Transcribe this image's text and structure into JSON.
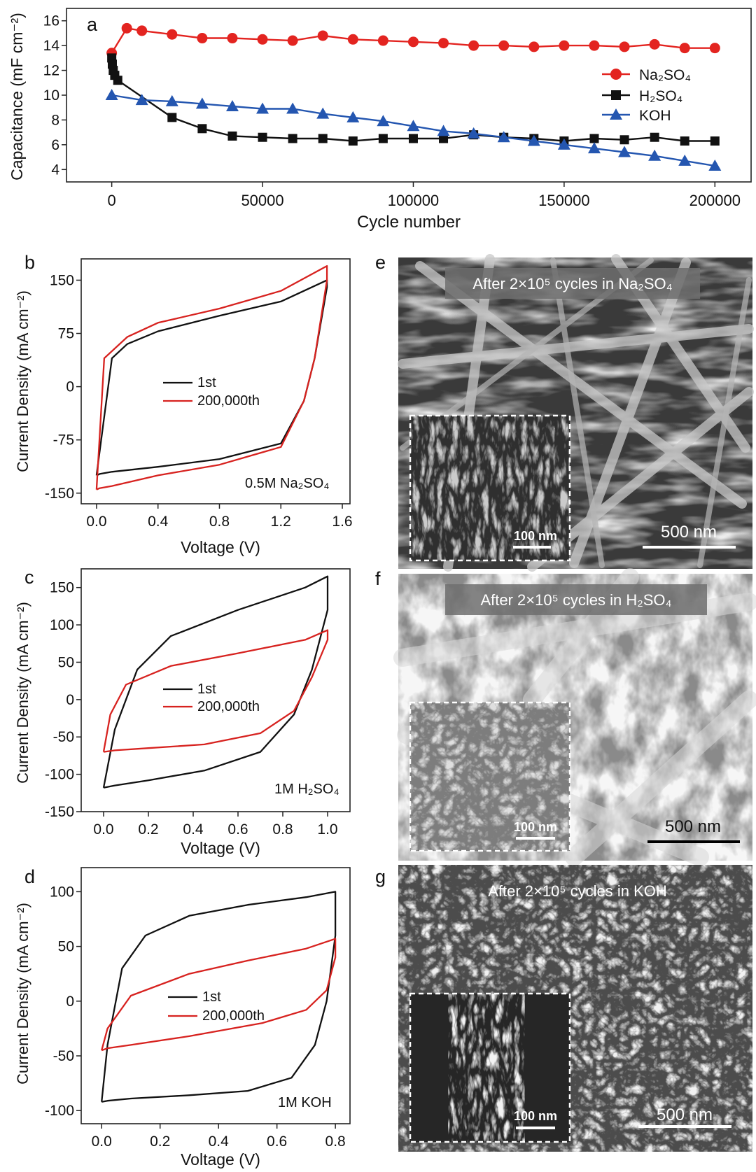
{
  "panels": {
    "a": {
      "letter": "a",
      "xlabel": "Cycle number",
      "ylabel": "Capacitance (mF cm⁻²)"
    },
    "b": {
      "letter": "b",
      "xlabel": "Voltage (V)",
      "ylabel": "Current Density (mA cm⁻²)",
      "annotation": "0.5M Na₂SO₄"
    },
    "c": {
      "letter": "c",
      "xlabel": "Voltage (V)",
      "ylabel": "Current Density (mA cm⁻²)",
      "annotation": "1M H₂SO₄"
    },
    "d": {
      "letter": "d",
      "xlabel": "Voltage (V)",
      "ylabel": "Current Density (mA cm⁻²)",
      "annotation": "1M KOH"
    },
    "e": {
      "letter": "e",
      "caption": "After 2×10⁵ cycles in Na₂SO₄",
      "scale_main": "500 nm",
      "scale_inset": "100 nm"
    },
    "f": {
      "letter": "f",
      "caption": "After 2×10⁵ cycles in H₂SO₄",
      "scale_main": "500 nm",
      "scale_inset": "100 nm"
    },
    "g": {
      "letter": "g",
      "caption": "After 2×10⁵ cycles in KOH",
      "scale_main": "500 nm",
      "scale_inset": "100 nm"
    }
  },
  "chart_data": [
    {
      "panel": "a",
      "type": "line",
      "xlabel": "Cycle number",
      "ylabel": "Capacitance (mF cm⁻²)",
      "xlim": [
        -15000,
        212000
      ],
      "ylim": [
        3,
        17
      ],
      "xticks": [
        0,
        50000,
        100000,
        150000,
        200000
      ],
      "yticks": [
        4,
        6,
        8,
        10,
        12,
        14,
        16
      ],
      "legend_position": "right",
      "series": [
        {
          "name": "Na₂SO₄",
          "color": "#e32420",
          "marker": "circle",
          "x": [
            0,
            5000,
            10000,
            20000,
            30000,
            40000,
            50000,
            60000,
            70000,
            80000,
            90000,
            100000,
            110000,
            120000,
            130000,
            140000,
            150000,
            160000,
            170000,
            180000,
            190000,
            200000
          ],
          "y": [
            13.4,
            15.4,
            15.2,
            14.9,
            14.6,
            14.6,
            14.5,
            14.4,
            14.8,
            14.5,
            14.4,
            14.3,
            14.2,
            14.0,
            14.0,
            13.9,
            14.0,
            14.0,
            13.9,
            14.1,
            13.8,
            13.8
          ]
        },
        {
          "name": "H₂SO₄",
          "color": "#111111",
          "marker": "square",
          "x": [
            0,
            200,
            500,
            1000,
            2000,
            20000,
            30000,
            40000,
            50000,
            60000,
            70000,
            80000,
            90000,
            100000,
            110000,
            120000,
            130000,
            140000,
            150000,
            160000,
            170000,
            180000,
            190000,
            200000
          ],
          "y": [
            13.0,
            12.5,
            12.0,
            11.6,
            11.2,
            8.2,
            7.3,
            6.7,
            6.6,
            6.5,
            6.5,
            6.3,
            6.5,
            6.5,
            6.5,
            6.8,
            6.6,
            6.5,
            6.3,
            6.5,
            6.4,
            6.6,
            6.3,
            6.3
          ]
        },
        {
          "name": "KOH",
          "color": "#2456b0",
          "marker": "triangle",
          "x": [
            0,
            10000,
            20000,
            30000,
            40000,
            50000,
            60000,
            70000,
            80000,
            90000,
            100000,
            110000,
            120000,
            130000,
            140000,
            150000,
            160000,
            170000,
            180000,
            190000,
            200000
          ],
          "y": [
            10.0,
            9.6,
            9.5,
            9.3,
            9.1,
            8.9,
            8.9,
            8.5,
            8.2,
            7.9,
            7.5,
            7.1,
            6.9,
            6.6,
            6.3,
            6.0,
            5.7,
            5.4,
            5.1,
            4.7,
            4.3
          ]
        }
      ]
    },
    {
      "panel": "b",
      "type": "line",
      "xlabel": "Voltage (V)",
      "ylabel": "Current Density (mA cm⁻²)",
      "xlim": [
        -0.1,
        1.65
      ],
      "ylim": [
        -165,
        180
      ],
      "xticks": [
        0.0,
        0.4,
        0.8,
        1.2,
        1.6
      ],
      "yticks": [
        -150,
        -75,
        0,
        75,
        150
      ],
      "legend_position": "center",
      "series": [
        {
          "name": "1st",
          "color": "#111111",
          "x": [
            0,
            0.1,
            0.2,
            0.4,
            0.8,
            1.2,
            1.5,
            1.5,
            1.42,
            1.35,
            1.2,
            0.8,
            0.4,
            0.1,
            0.02,
            0,
            0
          ],
          "y": [
            -125,
            40,
            60,
            78,
            100,
            120,
            150,
            140,
            40,
            -20,
            -80,
            -102,
            -113,
            -120,
            -123,
            -125,
            -125
          ]
        },
        {
          "name": "200,000th",
          "color": "#d7221f",
          "x": [
            0,
            0.05,
            0.2,
            0.4,
            0.8,
            1.2,
            1.5,
            1.5,
            1.42,
            1.35,
            1.2,
            0.8,
            0.4,
            0.1,
            0.02,
            0,
            0
          ],
          "y": [
            -145,
            40,
            70,
            90,
            110,
            135,
            170,
            150,
            40,
            -20,
            -85,
            -110,
            -125,
            -140,
            -143,
            -145,
            -145
          ]
        }
      ]
    },
    {
      "panel": "c",
      "type": "line",
      "xlabel": "Voltage (V)",
      "ylabel": "Current Density (mA cm⁻²)",
      "xlim": [
        -0.1,
        1.1
      ],
      "ylim": [
        -150,
        175
      ],
      "xticks": [
        0.0,
        0.2,
        0.4,
        0.6,
        0.8,
        1.0
      ],
      "yticks": [
        -150,
        -100,
        -50,
        0,
        50,
        100,
        150
      ],
      "legend_position": "center",
      "series": [
        {
          "name": "1st",
          "color": "#111111",
          "x": [
            0,
            0.05,
            0.15,
            0.3,
            0.6,
            0.9,
            1.0,
            1.0,
            0.93,
            0.85,
            0.7,
            0.45,
            0.2,
            0.05,
            0
          ],
          "y": [
            -118,
            -40,
            40,
            85,
            120,
            150,
            165,
            120,
            40,
            -20,
            -70,
            -95,
            -108,
            -115,
            -118
          ]
        },
        {
          "name": "200,000th",
          "color": "#d7221f",
          "x": [
            0,
            0.03,
            0.1,
            0.3,
            0.6,
            0.9,
            1.0,
            1.0,
            0.93,
            0.85,
            0.7,
            0.45,
            0.2,
            0.05,
            0
          ],
          "y": [
            -70,
            -20,
            20,
            45,
            62,
            80,
            93,
            80,
            30,
            -15,
            -45,
            -60,
            -65,
            -68,
            -70
          ]
        }
      ]
    },
    {
      "panel": "d",
      "type": "line",
      "xlabel": "Voltage (V)",
      "ylabel": "Current Density (mA cm⁻²)",
      "xlim": [
        -0.07,
        0.85
      ],
      "ylim": [
        -112,
        122
      ],
      "xticks": [
        0.0,
        0.2,
        0.4,
        0.6,
        0.8
      ],
      "yticks": [
        -100,
        -50,
        0,
        50,
        100
      ],
      "legend_position": "center",
      "series": [
        {
          "name": "1st",
          "color": "#111111",
          "x": [
            0,
            0.02,
            0.07,
            0.15,
            0.3,
            0.5,
            0.7,
            0.8,
            0.8,
            0.77,
            0.73,
            0.65,
            0.5,
            0.3,
            0.1,
            0.02,
            0
          ],
          "y": [
            -92,
            -40,
            30,
            60,
            78,
            88,
            95,
            100,
            60,
            0,
            -40,
            -70,
            -82,
            -86,
            -89,
            -91,
            -92
          ]
        },
        {
          "name": "200,000th",
          "color": "#d7221f",
          "x": [
            0,
            0.02,
            0.1,
            0.3,
            0.5,
            0.7,
            0.8,
            0.8,
            0.77,
            0.7,
            0.55,
            0.3,
            0.1,
            0.02,
            0
          ],
          "y": [
            -45,
            -25,
            5,
            25,
            37,
            48,
            57,
            40,
            10,
            -8,
            -20,
            -32,
            -40,
            -43,
            -45
          ]
        }
      ]
    }
  ]
}
